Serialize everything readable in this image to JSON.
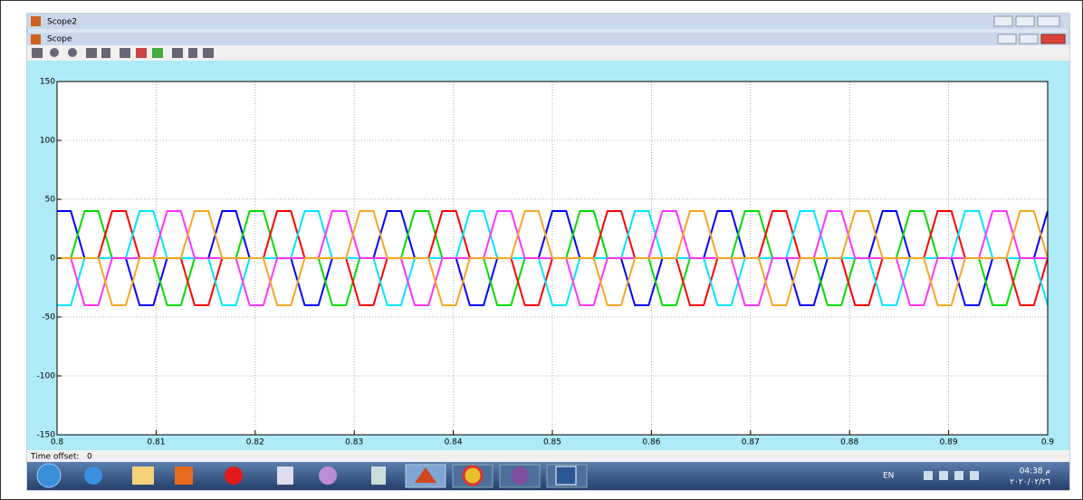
{
  "window": {
    "title": "Scope2"
  },
  "scope_window": {
    "title": "Scope"
  },
  "chart_data": {
    "type": "line",
    "x": [
      0.8,
      0.80139,
      0.80278,
      0.80417,
      0.80556,
      0.80694,
      0.80833,
      0.80972,
      0.81111,
      0.8125,
      0.81389,
      0.81528,
      0.81667,
      0.81806,
      0.81944,
      0.82083,
      0.82222,
      0.82361,
      0.825,
      0.82639,
      0.82778,
      0.82917,
      0.83056,
      0.83194,
      0.83333,
      0.83472,
      0.83611,
      0.8375,
      0.83889,
      0.84028,
      0.84167,
      0.84306,
      0.84444,
      0.84583,
      0.84722,
      0.84861,
      0.85,
      0.85139,
      0.85278,
      0.85417,
      0.85556,
      0.85694,
      0.85833,
      0.85972,
      0.86111,
      0.8625,
      0.86389,
      0.86528,
      0.86667,
      0.86806,
      0.86944,
      0.87083,
      0.87222,
      0.87361,
      0.875,
      0.87639,
      0.87778,
      0.87917,
      0.88056,
      0.88194,
      0.88333,
      0.88472,
      0.88611,
      0.8875,
      0.88889,
      0.89028,
      0.89167,
      0.89306,
      0.89444,
      0.89583,
      0.89722,
      0.89861,
      0.9
    ],
    "series": [
      {
        "color": "#0000ff",
        "values": [
          40,
          40,
          0,
          0,
          0,
          0,
          -40,
          -40,
          0,
          0,
          0,
          0,
          40,
          40,
          0,
          0,
          0,
          0,
          -40,
          -40,
          0,
          0,
          0,
          0,
          40,
          40,
          0,
          0,
          0,
          0,
          -40,
          -40,
          0,
          0,
          0,
          0,
          40,
          40,
          0,
          0,
          0,
          0,
          -40,
          -40,
          0,
          0,
          0,
          0,
          40,
          40,
          0,
          0,
          0,
          0,
          -40,
          -40,
          0,
          0,
          0,
          0,
          40,
          40,
          0,
          0,
          0,
          0,
          -40,
          -40,
          0,
          0,
          0,
          0,
          40
        ]
      },
      {
        "color": "#00dd00",
        "values": [
          0,
          0,
          40,
          40,
          0,
          0,
          0,
          0,
          -40,
          -40,
          0,
          0,
          0,
          0,
          40,
          40,
          0,
          0,
          0,
          0,
          -40,
          -40,
          0,
          0,
          0,
          0,
          40,
          40,
          0,
          0,
          0,
          0,
          -40,
          -40,
          0,
          0,
          0,
          0,
          40,
          40,
          0,
          0,
          0,
          0,
          -40,
          -40,
          0,
          0,
          0,
          0,
          40,
          40,
          0,
          0,
          0,
          0,
          -40,
          -40,
          0,
          0,
          0,
          0,
          40,
          40,
          0,
          0,
          0,
          0,
          -40,
          -40,
          0,
          0,
          0
        ]
      },
      {
        "color": "#ff0000",
        "values": [
          0,
          0,
          0,
          0,
          40,
          40,
          0,
          0,
          0,
          0,
          -40,
          -40,
          0,
          0,
          0,
          0,
          40,
          40,
          0,
          0,
          0,
          0,
          -40,
          -40,
          0,
          0,
          0,
          0,
          40,
          40,
          0,
          0,
          0,
          0,
          -40,
          -40,
          0,
          0,
          0,
          0,
          40,
          40,
          0,
          0,
          0,
          0,
          -40,
          -40,
          0,
          0,
          0,
          0,
          40,
          40,
          0,
          0,
          0,
          0,
          -40,
          -40,
          0,
          0,
          0,
          0,
          40,
          40,
          0,
          0,
          0,
          0,
          -40,
          -40,
          0
        ]
      },
      {
        "color": "#00e5ff",
        "values": [
          -40,
          -40,
          0,
          0,
          0,
          0,
          40,
          40,
          0,
          0,
          0,
          0,
          -40,
          -40,
          0,
          0,
          0,
          0,
          40,
          40,
          0,
          0,
          0,
          0,
          -40,
          -40,
          0,
          0,
          0,
          0,
          40,
          40,
          0,
          0,
          0,
          0,
          -40,
          -40,
          0,
          0,
          0,
          0,
          40,
          40,
          0,
          0,
          0,
          0,
          -40,
          -40,
          0,
          0,
          0,
          0,
          40,
          40,
          0,
          0,
          0,
          0,
          -40,
          -40,
          0,
          0,
          0,
          0,
          40,
          40,
          0,
          0,
          0,
          0,
          -40
        ]
      },
      {
        "color": "#ff33ff",
        "values": [
          0,
          0,
          -40,
          -40,
          0,
          0,
          0,
          0,
          40,
          40,
          0,
          0,
          0,
          0,
          -40,
          -40,
          0,
          0,
          0,
          0,
          40,
          40,
          0,
          0,
          0,
          0,
          -40,
          -40,
          0,
          0,
          0,
          0,
          40,
          40,
          0,
          0,
          0,
          0,
          -40,
          -40,
          0,
          0,
          0,
          0,
          40,
          40,
          0,
          0,
          0,
          0,
          -40,
          -40,
          0,
          0,
          0,
          0,
          40,
          40,
          0,
          0,
          0,
          0,
          -40,
          -40,
          0,
          0,
          0,
          0,
          40,
          40,
          0,
          0,
          0
        ]
      },
      {
        "color": "#f5a623",
        "values": [
          0,
          0,
          0,
          0,
          -40,
          -40,
          0,
          0,
          0,
          0,
          40,
          40,
          0,
          0,
          0,
          0,
          -40,
          -40,
          0,
          0,
          0,
          0,
          40,
          40,
          0,
          0,
          0,
          0,
          -40,
          -40,
          0,
          0,
          0,
          0,
          40,
          40,
          0,
          0,
          0,
          0,
          -40,
          -40,
          0,
          0,
          0,
          0,
          40,
          40,
          0,
          0,
          0,
          0,
          -40,
          -40,
          0,
          0,
          0,
          0,
          40,
          40,
          0,
          0,
          0,
          0,
          -40,
          -40,
          0,
          0,
          0,
          0,
          40,
          40,
          0
        ]
      }
    ],
    "xlim": [
      0.8,
      0.9
    ],
    "xticks": [
      0.8,
      0.81,
      0.82,
      0.83,
      0.84,
      0.85,
      0.86,
      0.87,
      0.88,
      0.89,
      0.9
    ],
    "ylim": [
      -150,
      150
    ],
    "yticks": [
      -150,
      -100,
      -50,
      0,
      50,
      100,
      150
    ],
    "grid": true
  },
  "status": {
    "time_offset_label": "Time offset:",
    "time_offset_value": "0"
  },
  "taskbar": {
    "language": "EN",
    "time": "04:38 م",
    "date": "٢٠٢٠/٠٢/٢٦"
  }
}
